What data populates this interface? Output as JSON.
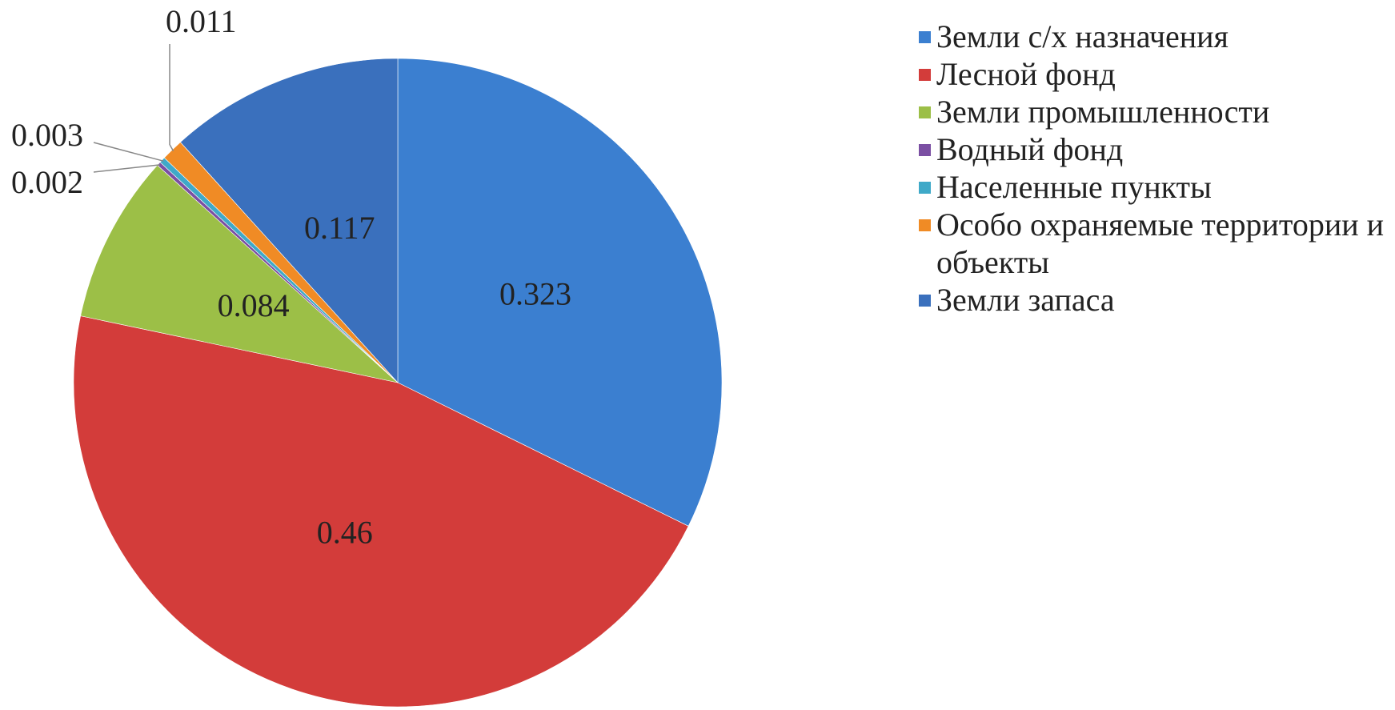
{
  "chart_data": {
    "type": "pie",
    "categories": [
      "Земли с/х назначения",
      "Лесной фонд",
      "Земли промышленности",
      "Водный фонд",
      "Населенные пункты",
      "Особо охраняемые территории и объекты",
      "Земли запаса"
    ],
    "values": [
      0.323,
      0.46,
      0.084,
      0.002,
      0.003,
      0.011,
      0.117
    ],
    "colors": [
      "#3b7fd0",
      "#d33c3a",
      "#9cbf47",
      "#7b4fa3",
      "#3fa9c8",
      "#f08b25",
      "#3a70bd"
    ],
    "legend": "right"
  }
}
